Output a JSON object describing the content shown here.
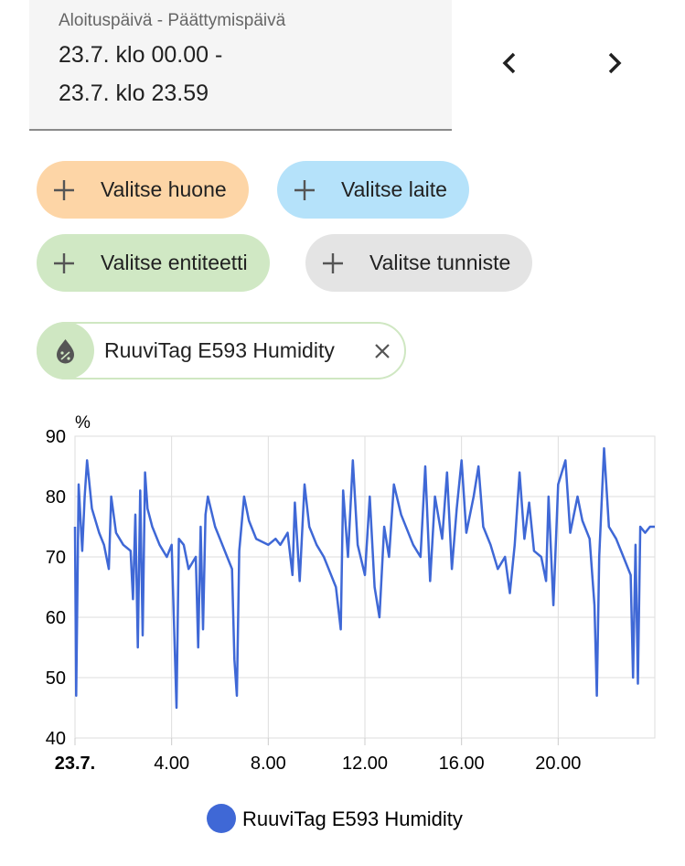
{
  "date_range": {
    "label": "Aloituspäivä - Päättymispäivä",
    "start": "23.7. klo 00.00 -",
    "end": "23.7. klo 23.59"
  },
  "chips": [
    {
      "label": "Valitse huone",
      "color": "#fdd5a6"
    },
    {
      "label": "Valitse laite",
      "color": "#b5e2fa"
    },
    {
      "label": "Valitse entiteetti",
      "color": "#d0e8c4"
    },
    {
      "label": "Valitse tunniste",
      "color": "#e4e4e4"
    }
  ],
  "selected": {
    "label": "RuuviTag E593 Humidity"
  },
  "chart_data": {
    "type": "line",
    "ylabel": "%",
    "xlim": [
      0,
      24
    ],
    "ylim": [
      40,
      90
    ],
    "yticks": [
      40,
      50,
      60,
      70,
      80,
      90
    ],
    "xticks": [
      {
        "value": 0,
        "label": "23.7."
      },
      {
        "value": 4,
        "label": "4.00"
      },
      {
        "value": 8,
        "label": "8.00"
      },
      {
        "value": 12,
        "label": "12.00"
      },
      {
        "value": 16,
        "label": "16.00"
      },
      {
        "value": 20,
        "label": "20.00"
      }
    ],
    "grid": true,
    "x": [
      0,
      0.05,
      0.15,
      0.3,
      0.4,
      0.5,
      0.7,
      1.0,
      1.2,
      1.4,
      1.5,
      1.7,
      2.0,
      2.3,
      2.4,
      2.5,
      2.6,
      2.7,
      2.8,
      2.9,
      3.0,
      3.2,
      3.5,
      3.8,
      4.0,
      4.2,
      4.3,
      4.5,
      4.7,
      5.0,
      5.1,
      5.2,
      5.3,
      5.4,
      5.5,
      5.8,
      6.0,
      6.3,
      6.5,
      6.6,
      6.7,
      6.8,
      7.0,
      7.2,
      7.5,
      8.0,
      8.3,
      8.5,
      8.8,
      9.0,
      9.1,
      9.3,
      9.5,
      9.7,
      10.0,
      10.3,
      10.5,
      10.8,
      11.0,
      11.1,
      11.3,
      11.5,
      11.7,
      12.0,
      12.2,
      12.4,
      12.6,
      12.8,
      13.0,
      13.2,
      13.5,
      14.0,
      14.3,
      14.5,
      14.7,
      14.9,
      15.2,
      15.4,
      15.6,
      15.8,
      16.0,
      16.2,
      16.5,
      16.7,
      16.9,
      17.2,
      17.5,
      17.8,
      18.0,
      18.2,
      18.4,
      18.6,
      18.8,
      19.0,
      19.3,
      19.5,
      19.6,
      19.8,
      20.0,
      20.3,
      20.5,
      20.8,
      21.0,
      21.3,
      21.5,
      21.6,
      21.7,
      21.9,
      22.1,
      22.4,
      22.7,
      23.0,
      23.1,
      23.2,
      23.3,
      23.4,
      23.6,
      23.8,
      24.0
    ],
    "series": [
      {
        "name": "RuuviTag E593 Humidity",
        "color": "#3f68d6",
        "values": [
          75,
          47,
          82,
          71,
          80,
          86,
          78,
          74,
          72,
          68,
          80,
          74,
          72,
          71,
          63,
          77,
          55,
          81,
          57,
          84,
          78,
          75,
          72,
          70,
          72,
          45,
          73,
          72,
          68,
          70,
          55,
          75,
          58,
          77,
          80,
          75,
          73,
          70,
          68,
          53,
          47,
          71,
          80,
          76,
          73,
          72,
          73,
          72,
          74,
          67,
          79,
          66,
          82,
          75,
          72,
          70,
          68,
          65,
          58,
          81,
          70,
          86,
          72,
          67,
          80,
          65,
          60,
          75,
          70,
          82,
          77,
          72,
          70,
          85,
          66,
          80,
          73,
          84,
          68,
          78,
          86,
          74,
          80,
          85,
          75,
          72,
          68,
          70,
          64,
          72,
          84,
          73,
          79,
          71,
          70,
          66,
          80,
          62,
          82,
          86,
          74,
          80,
          76,
          73,
          62,
          47,
          70,
          88,
          75,
          73,
          70,
          67,
          50,
          72,
          49,
          75,
          74,
          75,
          75
        ]
      }
    ]
  }
}
